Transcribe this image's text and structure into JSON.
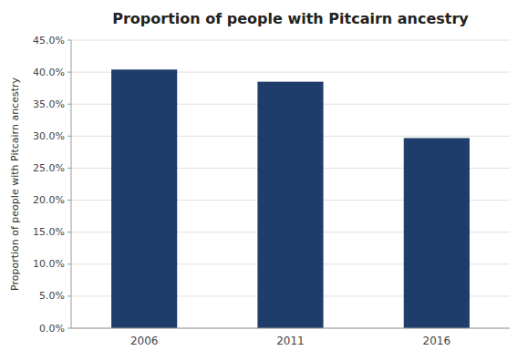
{
  "chart_data": {
    "type": "bar",
    "title": "Proportion of people with Pitcairn ancestry",
    "categories": [
      "2006",
      "2011",
      "2016"
    ],
    "values": [
      0.404,
      0.385,
      0.297
    ],
    "color": "#1F3D6B",
    "ylabel": "Proportion of people with Pitcairn ancestry",
    "ylim": [
      0,
      0.45
    ],
    "yticks": [
      {
        "value": 0.0,
        "label": "0.0%"
      },
      {
        "value": 0.05,
        "label": "5.0%"
      },
      {
        "value": 0.1,
        "label": "10.0%"
      },
      {
        "value": 0.15,
        "label": "15.0%"
      },
      {
        "value": 0.2,
        "label": "20.0%"
      },
      {
        "value": 0.25,
        "label": "25.0%"
      },
      {
        "value": 0.3,
        "label": "30.0%"
      },
      {
        "value": 0.35,
        "label": "35.0%"
      },
      {
        "value": 0.4,
        "label": "40.0%"
      },
      {
        "value": 0.45,
        "label": "45.0%"
      }
    ],
    "grid": true
  }
}
